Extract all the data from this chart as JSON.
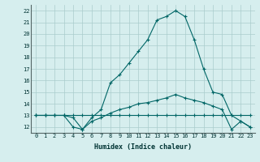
{
  "title": "",
  "xlabel": "Humidex (Indice chaleur)",
  "background_color": "#d6eeee",
  "grid_color": "#aacccc",
  "line_color": "#006666",
  "xlim": [
    -0.5,
    23.5
  ],
  "ylim": [
    11.5,
    22.5
  ],
  "xticks": [
    0,
    1,
    2,
    3,
    4,
    5,
    6,
    7,
    8,
    9,
    10,
    11,
    12,
    13,
    14,
    15,
    16,
    17,
    18,
    19,
    20,
    21,
    22,
    23
  ],
  "yticks": [
    12,
    13,
    14,
    15,
    16,
    17,
    18,
    19,
    20,
    21,
    22
  ],
  "line1_x": [
    0,
    1,
    2,
    3,
    4,
    5,
    6,
    7,
    8,
    9,
    10,
    11,
    12,
    13,
    14,
    15,
    16,
    17,
    18,
    19,
    20,
    21,
    22,
    23
  ],
  "line1_y": [
    13,
    13,
    13,
    13,
    13,
    13,
    13,
    13,
    13,
    13,
    13,
    13,
    13,
    13,
    13,
    13,
    13,
    13,
    13,
    13,
    13,
    13,
    13,
    13
  ],
  "line2_x": [
    0,
    1,
    2,
    3,
    4,
    5,
    6,
    7,
    8,
    9,
    10,
    11,
    12,
    13,
    14,
    15,
    16,
    17,
    18,
    19,
    20,
    21,
    22,
    23
  ],
  "line2_y": [
    13,
    13,
    13,
    13,
    12.8,
    11.8,
    12.5,
    12.8,
    13.2,
    13.5,
    13.7,
    14.0,
    14.1,
    14.3,
    14.5,
    14.8,
    14.5,
    14.3,
    14.1,
    13.8,
    13.5,
    11.8,
    12.5,
    12.0
  ],
  "line3_x": [
    0,
    1,
    2,
    3,
    4,
    5,
    6,
    7,
    8,
    9,
    10,
    11,
    12,
    13,
    14,
    15,
    16,
    17,
    18,
    19,
    20,
    21,
    22,
    23
  ],
  "line3_y": [
    13,
    13,
    13,
    13,
    12.0,
    11.8,
    12.8,
    13.5,
    15.8,
    16.5,
    17.5,
    18.5,
    19.5,
    21.2,
    21.5,
    22.0,
    21.5,
    19.5,
    17.0,
    15.0,
    14.8,
    13.0,
    12.5,
    12.0
  ]
}
